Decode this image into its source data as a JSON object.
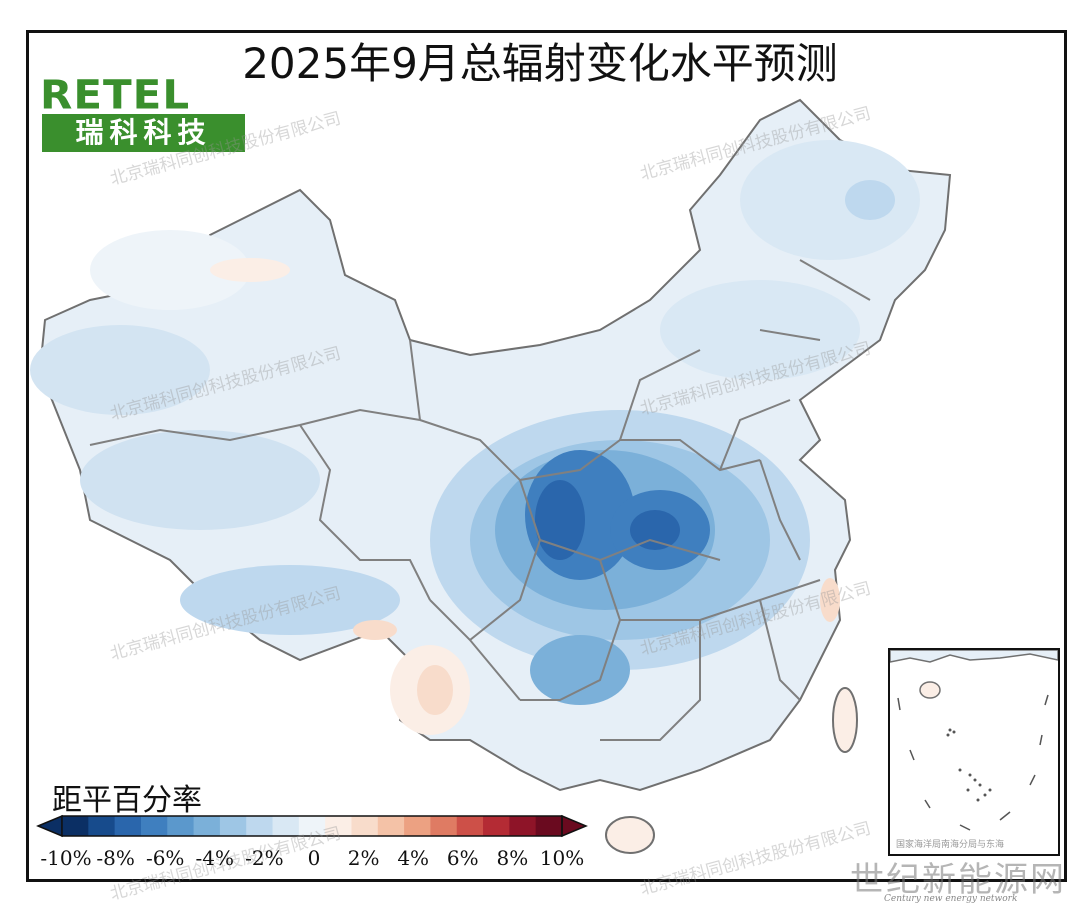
{
  "title": "2025年9月总辐射变化水平预测",
  "logo": {
    "latin": "RETEL",
    "cn": "瑞科科技"
  },
  "watermark": "北京瑞科同创科技股份有限公司",
  "legend": {
    "title": "距平百分率",
    "labels": [
      "-10%",
      "-8%",
      "-6%",
      "-4%",
      "-2%",
      "0",
      "2%",
      "4%",
      "6%",
      "8%",
      "10%"
    ],
    "colors": [
      "#0b2f64",
      "#174b8c",
      "#2a66ac",
      "#3f7fbf",
      "#5b98cc",
      "#7bb0d9",
      "#9ec6e5",
      "#bed8ee",
      "#d9e8f4",
      "#eef4f9",
      "#fbeee6",
      "#f8dccb",
      "#f4c2a7",
      "#eca182",
      "#df7b63",
      "#cd5048",
      "#b42b34",
      "#8e1428",
      "#6a0a1f"
    ]
  },
  "inset": {
    "caption": "国家海洋局南海分局与东海"
  },
  "site_mark": {
    "name": "世纪新能源网",
    "sub": "Century new energy network"
  }
}
